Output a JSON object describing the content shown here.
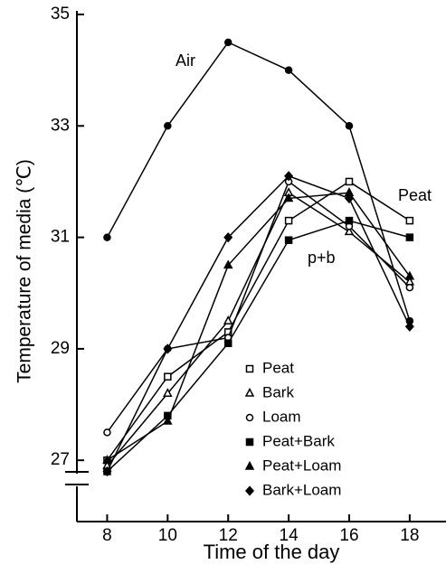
{
  "chart_data": {
    "type": "line",
    "x_label": "Time of the day",
    "y_label": "Temperature of media (℃)",
    "annotations": [
      "Air",
      "Peat",
      "p+b"
    ],
    "x": [
      8,
      10,
      12,
      14,
      16,
      18
    ],
    "xlim": [
      7,
      19.2
    ],
    "xticks": [
      8,
      10,
      12,
      14,
      16,
      18
    ],
    "ylim": [
      25.9,
      35
    ],
    "yticks": [
      27,
      29,
      31,
      33,
      35
    ],
    "series": [
      {
        "name": "Air",
        "color": "#000000",
        "marker": "filled-circle",
        "values": [
          31.0,
          33.0,
          34.5,
          34.0,
          33.0,
          29.5
        ]
      },
      {
        "name": "Peat",
        "color": "#000000",
        "marker": "open-square",
        "values": [
          27.0,
          28.5,
          29.3,
          31.3,
          32.0,
          31.3
        ]
      },
      {
        "name": "Bark",
        "color": "#000000",
        "marker": "open-triangle",
        "values": [
          26.9,
          28.2,
          29.5,
          31.8,
          31.1,
          30.2
        ]
      },
      {
        "name": "Loam",
        "color": "#000000",
        "marker": "open-circle",
        "values": [
          27.5,
          29.0,
          29.2,
          32.0,
          31.2,
          30.1
        ]
      },
      {
        "name": "Peat+Bark",
        "color": "#000000",
        "marker": "filled-square",
        "values": [
          26.8,
          27.8,
          29.1,
          30.95,
          31.3,
          31.0
        ]
      },
      {
        "name": "Peat+Loam",
        "color": "#000000",
        "marker": "filled-triangle",
        "values": [
          27.0,
          27.7,
          30.5,
          31.7,
          31.8,
          30.3
        ]
      },
      {
        "name": "Bark+Loam",
        "color": "#000000",
        "marker": "filled-diamond",
        "values": [
          26.8,
          29.0,
          31.0,
          32.1,
          31.7,
          29.4
        ]
      }
    ],
    "legend_series": [
      1,
      2,
      3,
      4,
      5,
      6
    ]
  }
}
